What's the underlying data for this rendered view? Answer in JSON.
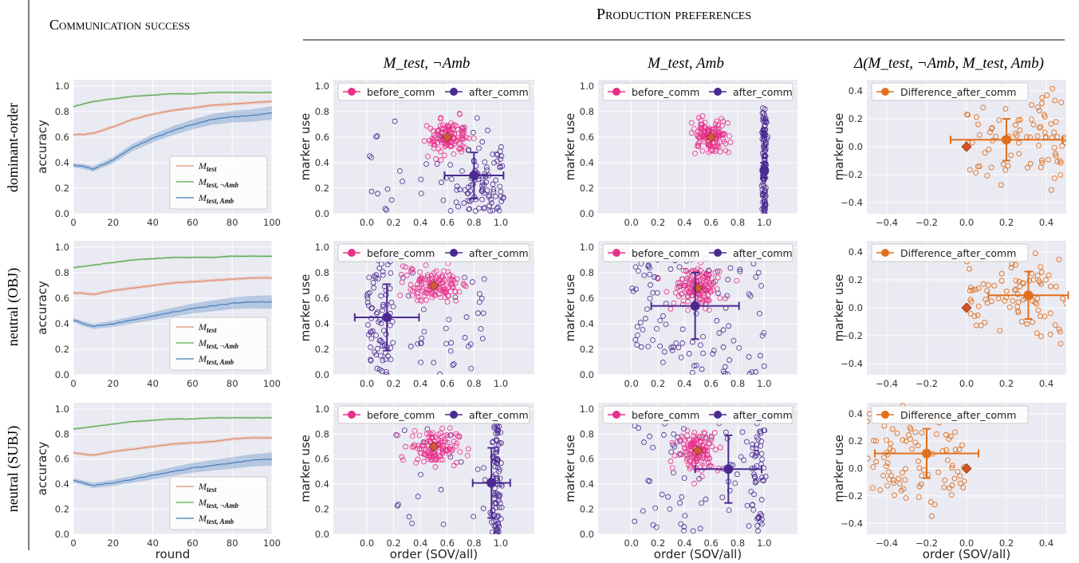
{
  "figure": {
    "section_left": "Communication success",
    "section_right": "Production preferences",
    "col_titles": [
      "M_test, ¬Amb",
      "M_test, Amb",
      "Δ(M_test, ¬Amb, M_test, Amb)"
    ],
    "row_labels": [
      "dominant-order",
      "neutral (OBJ)",
      "neutral (SUBJ)"
    ]
  },
  "colors": {
    "m_test": "#e08c68",
    "m_test_notamb": "#5aa94e",
    "m_test_amb": "#3d78b8",
    "before_comm": "#e8308a",
    "after_comm": "#4b2a90",
    "difference": "#e0701e",
    "marker_before": "#d05a3c",
    "marker_diff": "#d9531e",
    "plot_bg": "#eaeaf2"
  },
  "chart_data": [
    {
      "type": "line",
      "panel": "comm-dominant",
      "xlabel": "",
      "ylabel": "accuracy",
      "xlim": [
        0,
        100
      ],
      "ylim": [
        0,
        1.05
      ],
      "xticks": [
        "0",
        "20",
        "40",
        "60",
        "80",
        "100"
      ],
      "yticks": [
        "0.0",
        "0.2",
        "0.4",
        "0.6",
        "0.8",
        "1.0"
      ],
      "legend": [
        "M_test",
        "M_test, ¬Amb",
        "M_test, Amb"
      ],
      "series": [
        {
          "name": "M_test",
          "x": [
            0,
            5,
            10,
            20,
            30,
            40,
            50,
            60,
            70,
            80,
            90,
            100
          ],
          "values": [
            0.62,
            0.62,
            0.63,
            0.68,
            0.74,
            0.78,
            0.81,
            0.83,
            0.85,
            0.86,
            0.87,
            0.88
          ]
        },
        {
          "name": "M_test, ¬Amb",
          "x": [
            0,
            5,
            10,
            20,
            30,
            40,
            50,
            60,
            70,
            80,
            90,
            100
          ],
          "values": [
            0.84,
            0.86,
            0.88,
            0.9,
            0.92,
            0.93,
            0.94,
            0.94,
            0.95,
            0.95,
            0.95,
            0.95
          ]
        },
        {
          "name": "M_test, Amb",
          "x": [
            0,
            5,
            10,
            20,
            30,
            40,
            50,
            60,
            70,
            80,
            90,
            100
          ],
          "values": [
            0.38,
            0.37,
            0.35,
            0.42,
            0.52,
            0.59,
            0.65,
            0.7,
            0.74,
            0.76,
            0.77,
            0.79
          ]
        }
      ]
    },
    {
      "type": "line",
      "panel": "comm-obj",
      "xlabel": "",
      "ylabel": "accuracy",
      "xlim": [
        0,
        100
      ],
      "ylim": [
        0,
        1.05
      ],
      "xticks": [
        "0",
        "20",
        "40",
        "60",
        "80",
        "100"
      ],
      "yticks": [
        "0.0",
        "0.2",
        "0.4",
        "0.6",
        "0.8",
        "1.0"
      ],
      "legend": [
        "M_test",
        "M_test, ¬Amb",
        "M_test, Amb"
      ],
      "series": [
        {
          "name": "M_test",
          "x": [
            0,
            5,
            10,
            20,
            30,
            40,
            50,
            60,
            70,
            80,
            90,
            100
          ],
          "values": [
            0.64,
            0.64,
            0.63,
            0.66,
            0.68,
            0.7,
            0.72,
            0.73,
            0.74,
            0.75,
            0.76,
            0.76
          ]
        },
        {
          "name": "M_test, ¬Amb",
          "x": [
            0,
            5,
            10,
            20,
            30,
            40,
            50,
            60,
            70,
            80,
            90,
            100
          ],
          "values": [
            0.84,
            0.85,
            0.86,
            0.88,
            0.9,
            0.91,
            0.92,
            0.92,
            0.92,
            0.93,
            0.93,
            0.93
          ]
        },
        {
          "name": "M_test, Amb",
          "x": [
            0,
            5,
            10,
            20,
            30,
            40,
            50,
            60,
            70,
            80,
            90,
            100
          ],
          "values": [
            0.43,
            0.4,
            0.38,
            0.4,
            0.43,
            0.46,
            0.49,
            0.52,
            0.54,
            0.56,
            0.57,
            0.57
          ]
        }
      ]
    },
    {
      "type": "line",
      "panel": "comm-subj",
      "xlabel": "round",
      "ylabel": "accuracy",
      "xlim": [
        0,
        100
      ],
      "ylim": [
        0,
        1.05
      ],
      "xticks": [
        "0",
        "20",
        "40",
        "60",
        "80",
        "100"
      ],
      "yticks": [
        "0.0",
        "0.2",
        "0.4",
        "0.6",
        "0.8",
        "1.0"
      ],
      "legend": [
        "M_test",
        "M_test, ¬Amb",
        "M_test, Amb"
      ],
      "series": [
        {
          "name": "M_test",
          "x": [
            0,
            5,
            10,
            20,
            30,
            40,
            50,
            60,
            70,
            80,
            90,
            100
          ],
          "values": [
            0.65,
            0.64,
            0.63,
            0.66,
            0.68,
            0.7,
            0.72,
            0.73,
            0.74,
            0.76,
            0.77,
            0.77
          ]
        },
        {
          "name": "M_test, ¬Amb",
          "x": [
            0,
            5,
            10,
            20,
            30,
            40,
            50,
            60,
            70,
            80,
            90,
            100
          ],
          "values": [
            0.84,
            0.85,
            0.86,
            0.88,
            0.9,
            0.91,
            0.92,
            0.92,
            0.93,
            0.93,
            0.93,
            0.93
          ]
        },
        {
          "name": "M_test, Amb",
          "x": [
            0,
            5,
            10,
            20,
            30,
            40,
            50,
            60,
            70,
            80,
            90,
            100
          ],
          "values": [
            0.43,
            0.41,
            0.39,
            0.41,
            0.44,
            0.47,
            0.5,
            0.53,
            0.55,
            0.57,
            0.59,
            0.6
          ]
        }
      ]
    },
    {
      "type": "scatter",
      "panel": "prod-notamb-dominant",
      "xlabel": "",
      "ylabel": "marker use",
      "xlim": [
        -0.25,
        1.25
      ],
      "ylim": [
        0,
        1.05
      ],
      "xticks": [
        "0.0",
        "0.2",
        "0.4",
        "0.6",
        "0.8",
        "1.0"
      ],
      "yticks": [
        "0.0",
        "0.2",
        "0.4",
        "0.6",
        "0.8",
        "1.0"
      ],
      "legend": [
        "before_comm",
        "after_comm"
      ],
      "before_center": [
        0.6,
        0.6
      ],
      "before_spread": [
        0.08,
        0.06
      ],
      "after_mean": [
        0.8,
        0.3
      ],
      "after_xerr": 0.22,
      "after_yerr": 0.18,
      "after_cloud": {
        "xmin": 0.0,
        "xmax": 1.0,
        "ymin": 0.0,
        "ymax": 0.8,
        "bias": "right"
      }
    },
    {
      "type": "scatter",
      "panel": "prod-amb-dominant",
      "xlabel": "",
      "ylabel": "marker use",
      "xlim": [
        -0.25,
        1.25
      ],
      "ylim": [
        0,
        1.05
      ],
      "xticks": [
        "0.0",
        "0.2",
        "0.4",
        "0.6",
        "0.8",
        "1.0"
      ],
      "yticks": [
        "0.0",
        "0.2",
        "0.4",
        "0.6",
        "0.8",
        "1.0"
      ],
      "legend": [
        "before_comm",
        "after_comm"
      ],
      "before_center": [
        0.6,
        0.6
      ],
      "before_spread": [
        0.07,
        0.06
      ],
      "after_mean": [
        1.0,
        0.34
      ],
      "after_xerr": 0.02,
      "after_yerr": 0.06,
      "after_cloud": {
        "xmin": 0.97,
        "xmax": 1.02,
        "ymin": 0.0,
        "ymax": 0.83,
        "bias": "vertical"
      }
    },
    {
      "type": "scatter",
      "panel": "diff-dominant",
      "xlabel": "",
      "ylabel": "marker use",
      "xlim": [
        -0.5,
        0.5
      ],
      "ylim": [
        -0.48,
        0.48
      ],
      "xticks": [
        "−0.4",
        "−0.2",
        "0.0",
        "0.2",
        "0.4"
      ],
      "yticks": [
        "−0.4",
        "−0.2",
        "0.0",
        "0.2",
        "0.4"
      ],
      "legend": [
        "Difference_after_comm"
      ],
      "diff_mean": [
        0.2,
        0.05
      ],
      "diff_xerr": 0.28,
      "diff_yerr": 0.15,
      "cloud": {
        "xmin": 0.0,
        "xmax": 0.5,
        "ymin": -0.3,
        "ymax": 0.45
      }
    },
    {
      "type": "scatter",
      "panel": "prod-notamb-obj",
      "xlabel": "",
      "ylabel": "marker use",
      "xlim": [
        -0.25,
        1.25
      ],
      "ylim": [
        0,
        1.05
      ],
      "xticks": [
        "0.0",
        "0.2",
        "0.4",
        "0.6",
        "0.8",
        "1.0"
      ],
      "yticks": [
        "0.0",
        "0.2",
        "0.4",
        "0.6",
        "0.8",
        "1.0"
      ],
      "legend": [
        "before_comm",
        "after_comm"
      ],
      "before_center": [
        0.5,
        0.7
      ],
      "before_spread": [
        0.1,
        0.07
      ],
      "after_mean": [
        0.15,
        0.45
      ],
      "after_xerr": 0.24,
      "after_yerr": 0.26,
      "after_cloud": {
        "xmin": 0.0,
        "xmax": 0.9,
        "ymin": 0.0,
        "ymax": 0.95,
        "bias": "left"
      }
    },
    {
      "type": "scatter",
      "panel": "prod-amb-obj",
      "xlabel": "",
      "ylabel": "marker use",
      "xlim": [
        -0.25,
        1.25
      ],
      "ylim": [
        0,
        1.05
      ],
      "xticks": [
        "0.0",
        "0.2",
        "0.4",
        "0.6",
        "0.8",
        "1.0"
      ],
      "yticks": [
        "0.0",
        "0.2",
        "0.4",
        "0.6",
        "0.8",
        "1.0"
      ],
      "legend": [
        "before_comm",
        "after_comm"
      ],
      "before_center": [
        0.5,
        0.68
      ],
      "before_spread": [
        0.09,
        0.08
      ],
      "after_mean": [
        0.48,
        0.54
      ],
      "after_xerr": 0.33,
      "after_yerr": 0.26,
      "after_cloud": {
        "xmin": 0.0,
        "xmax": 1.0,
        "ymin": 0.0,
        "ymax": 0.95,
        "bias": "wide"
      }
    },
    {
      "type": "scatter",
      "panel": "diff-obj",
      "xlabel": "",
      "ylabel": "marker use",
      "xlim": [
        -0.5,
        0.5
      ],
      "ylim": [
        -0.48,
        0.48
      ],
      "xticks": [
        "−0.4",
        "−0.2",
        "0.0",
        "0.2",
        "0.4"
      ],
      "yticks": [
        "−0.4",
        "−0.2",
        "0.0",
        "0.2",
        "0.4"
      ],
      "legend": [
        "Difference_after_comm"
      ],
      "diff_mean": [
        0.31,
        0.09
      ],
      "diff_xerr": 0.2,
      "diff_yerr": 0.17,
      "cloud": {
        "xmin": 0.0,
        "xmax": 0.5,
        "ymin": -0.25,
        "ymax": 0.45
      }
    },
    {
      "type": "scatter",
      "panel": "prod-notamb-subj",
      "xlabel": "order (SOV/all)",
      "ylabel": "marker use",
      "xlim": [
        -0.25,
        1.25
      ],
      "ylim": [
        0,
        1.05
      ],
      "xticks": [
        "0.0",
        "0.2",
        "0.4",
        "0.6",
        "0.8",
        "1.0"
      ],
      "yticks": [
        "0.0",
        "0.2",
        "0.4",
        "0.6",
        "0.8",
        "1.0"
      ],
      "legend": [
        "before_comm",
        "after_comm"
      ],
      "before_center": [
        0.5,
        0.7
      ],
      "before_spread": [
        0.09,
        0.07
      ],
      "after_mean": [
        0.93,
        0.41
      ],
      "after_xerr": 0.14,
      "after_yerr": 0.28,
      "after_cloud": {
        "xmin": 0.85,
        "xmax": 1.02,
        "ymin": 0.0,
        "ymax": 0.88,
        "bias": "vertical-right"
      }
    },
    {
      "type": "scatter",
      "panel": "prod-amb-subj",
      "xlabel": "order (SOV/all)",
      "ylabel": "marker use",
      "xlim": [
        -0.25,
        1.25
      ],
      "ylim": [
        0,
        1.05
      ],
      "xticks": [
        "0.0",
        "0.2",
        "0.4",
        "0.6",
        "0.8",
        "1.0"
      ],
      "yticks": [
        "0.0",
        "0.2",
        "0.4",
        "0.6",
        "0.8",
        "1.0"
      ],
      "legend": [
        "before_comm",
        "after_comm"
      ],
      "before_center": [
        0.5,
        0.67
      ],
      "before_spread": [
        0.08,
        0.08
      ],
      "after_mean": [
        0.73,
        0.52
      ],
      "after_xerr": 0.25,
      "after_yerr": 0.27,
      "after_cloud": {
        "xmin": 0.0,
        "xmax": 1.0,
        "ymin": 0.0,
        "ymax": 0.95,
        "bias": "right-wide"
      }
    },
    {
      "type": "scatter",
      "panel": "diff-subj",
      "xlabel": "order (SOV/all)",
      "ylabel": "marker use",
      "xlim": [
        -0.5,
        0.5
      ],
      "ylim": [
        -0.48,
        0.48
      ],
      "xticks": [
        "−0.4",
        "−0.2",
        "0.0",
        "0.2",
        "0.4"
      ],
      "yticks": [
        "−0.4",
        "−0.2",
        "0.0",
        "0.2",
        "0.4"
      ],
      "legend": [
        "Difference_after_comm"
      ],
      "diff_mean": [
        -0.2,
        0.11
      ],
      "diff_xerr": 0.26,
      "diff_yerr": 0.18,
      "cloud": {
        "xmin": -0.5,
        "xmax": 0.0,
        "ymin": -0.35,
        "ymax": 0.45
      }
    }
  ]
}
